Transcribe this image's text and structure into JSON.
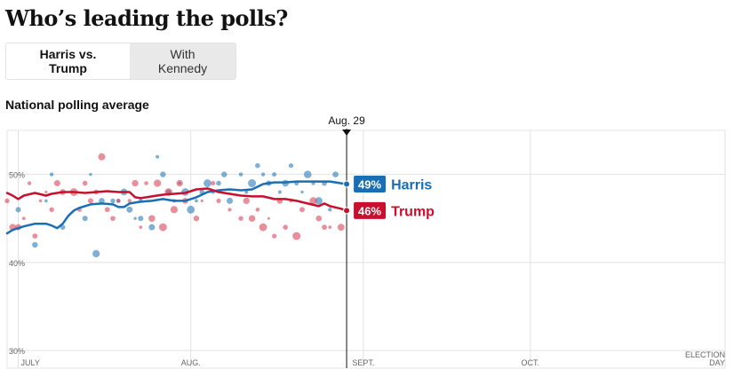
{
  "title": "Who’s leading the polls?",
  "toggle": {
    "option_1": "Harris vs. Trump",
    "option_2": "With Kennedy",
    "selected": "Harris vs. Trump"
  },
  "subtitle": "National polling average",
  "chart_data": {
    "type": "line",
    "x_axis": {
      "start": "2024-06-29",
      "end": "2024-11-05",
      "ticks": [
        {
          "label": "JULY",
          "day": 2
        },
        {
          "label": "AUG.",
          "day": 33
        },
        {
          "label": "SEPT.",
          "day": 64
        },
        {
          "label": "OCT.",
          "day": 94
        },
        {
          "label": "ELECTION",
          "label2": "DAY",
          "day": 129
        }
      ]
    },
    "y_axis": {
      "min": 28,
      "max": 55,
      "ticks": [
        {
          "value": 30,
          "label": "30%"
        },
        {
          "value": 40,
          "label": "40%"
        },
        {
          "value": 50,
          "label": "50%"
        }
      ]
    },
    "current_marker": {
      "label": "Aug. 29",
      "day": 61
    },
    "series": [
      {
        "name": "Harris",
        "color": "#2a79b8",
        "line_color": "#1a6fb4",
        "final_label": "49%",
        "final_value": 48.9,
        "points": [
          [
            0,
            43.3
          ],
          [
            1,
            43.7
          ],
          [
            3,
            44.1
          ],
          [
            5,
            44.4
          ],
          [
            7,
            44.4
          ],
          [
            8,
            44.2
          ],
          [
            9,
            43.9
          ],
          [
            10,
            44.4
          ],
          [
            11,
            45.3
          ],
          [
            12,
            45.9
          ],
          [
            13,
            46.2
          ],
          [
            15,
            46.6
          ],
          [
            17,
            46.7
          ],
          [
            19,
            46.6
          ],
          [
            20,
            46.3
          ],
          [
            21,
            46.3
          ],
          [
            22,
            46.7
          ],
          [
            24,
            46.9
          ],
          [
            26,
            47.0
          ],
          [
            28,
            47.2
          ],
          [
            30,
            47.0
          ],
          [
            32,
            47.0
          ],
          [
            34,
            47.4
          ],
          [
            36,
            48.0
          ],
          [
            38,
            48.2
          ],
          [
            40,
            48.3
          ],
          [
            42,
            48.2
          ],
          [
            44,
            48.3
          ],
          [
            46,
            48.9
          ],
          [
            48,
            49.1
          ],
          [
            50,
            49.1
          ],
          [
            52,
            49.2
          ],
          [
            54,
            49.2
          ],
          [
            56,
            49.2
          ],
          [
            58,
            49.2
          ],
          [
            60,
            49.0
          ],
          [
            61,
            48.9
          ]
        ]
      },
      {
        "name": "Trump",
        "color": "#d8445a",
        "line_color": "#c8102e",
        "final_label": "46%",
        "final_value": 45.9,
        "points": [
          [
            0,
            47.9
          ],
          [
            1,
            47.6
          ],
          [
            2,
            47.2
          ],
          [
            3,
            47.6
          ],
          [
            5,
            47.9
          ],
          [
            7,
            47.6
          ],
          [
            8,
            47.8
          ],
          [
            10,
            48.0
          ],
          [
            12,
            48.0
          ],
          [
            14,
            47.9
          ],
          [
            16,
            48.0
          ],
          [
            18,
            48.1
          ],
          [
            20,
            48.0
          ],
          [
            22,
            48.0
          ],
          [
            23,
            47.4
          ],
          [
            24,
            47.3
          ],
          [
            26,
            47.5
          ],
          [
            28,
            47.7
          ],
          [
            30,
            47.8
          ],
          [
            32,
            47.9
          ],
          [
            34,
            48.3
          ],
          [
            36,
            48.4
          ],
          [
            38,
            48.0
          ],
          [
            40,
            47.8
          ],
          [
            42,
            47.6
          ],
          [
            44,
            47.5
          ],
          [
            46,
            47.5
          ],
          [
            48,
            47.2
          ],
          [
            50,
            47.2
          ],
          [
            52,
            47.0
          ],
          [
            54,
            46.7
          ],
          [
            56,
            46.4
          ],
          [
            57,
            46.7
          ],
          [
            58,
            46.4
          ],
          [
            60,
            46.1
          ],
          [
            61,
            45.9
          ]
        ]
      }
    ],
    "polls": {
      "Harris": [
        [
          2,
          46
        ],
        [
          5,
          42
        ],
        [
          7,
          47
        ],
        [
          8,
          50
        ],
        [
          10,
          44
        ],
        [
          14,
          45
        ],
        [
          15,
          50
        ],
        [
          16,
          41
        ],
        [
          17,
          47
        ],
        [
          19,
          47
        ],
        [
          20,
          47
        ],
        [
          21,
          48
        ],
        [
          22,
          46
        ],
        [
          23,
          45
        ],
        [
          24,
          45
        ],
        [
          24,
          47
        ],
        [
          26,
          44
        ],
        [
          27,
          52
        ],
        [
          28,
          50
        ],
        [
          29,
          48
        ],
        [
          30,
          47
        ],
        [
          31,
          49
        ],
        [
          32,
          48
        ],
        [
          33,
          46
        ],
        [
          34,
          47
        ],
        [
          35,
          48
        ],
        [
          36,
          49
        ],
        [
          37,
          48
        ],
        [
          38,
          49
        ],
        [
          39,
          50
        ],
        [
          40,
          47
        ],
        [
          42,
          50
        ],
        [
          43,
          48
        ],
        [
          44,
          49
        ],
        [
          45,
          51
        ],
        [
          46,
          50
        ],
        [
          47,
          49
        ],
        [
          48,
          50
        ],
        [
          49,
          48
        ],
        [
          50,
          49
        ],
        [
          51,
          51
        ],
        [
          52,
          49
        ],
        [
          53,
          48
        ],
        [
          54,
          50
        ],
        [
          55,
          49
        ],
        [
          56,
          47
        ],
        [
          57,
          49
        ],
        [
          58,
          46
        ],
        [
          59,
          50
        ]
      ],
      "Trump": [
        [
          0,
          47
        ],
        [
          1,
          44
        ],
        [
          2,
          44
        ],
        [
          3,
          45
        ],
        [
          4,
          49
        ],
        [
          5,
          43
        ],
        [
          6,
          47
        ],
        [
          7,
          48
        ],
        [
          8,
          46
        ],
        [
          9,
          49
        ],
        [
          10,
          48
        ],
        [
          12,
          48
        ],
        [
          13,
          46
        ],
        [
          14,
          49
        ],
        [
          15,
          47
        ],
        [
          16,
          48
        ],
        [
          17,
          52
        ],
        [
          18,
          46
        ],
        [
          19,
          45
        ],
        [
          20,
          47
        ],
        [
          22,
          47
        ],
        [
          23,
          49
        ],
        [
          24,
          44
        ],
        [
          25,
          49
        ],
        [
          26,
          45
        ],
        [
          27,
          49
        ],
        [
          28,
          44
        ],
        [
          29,
          48
        ],
        [
          30,
          46
        ],
        [
          31,
          49
        ],
        [
          32,
          47
        ],
        [
          34,
          45
        ],
        [
          35,
          47
        ],
        [
          37,
          49
        ],
        [
          38,
          47
        ],
        [
          40,
          46
        ],
        [
          42,
          45
        ],
        [
          43,
          47
        ],
        [
          44,
          45
        ],
        [
          45,
          46
        ],
        [
          46,
          44
        ],
        [
          47,
          45
        ],
        [
          48,
          43
        ],
        [
          49,
          47
        ],
        [
          50,
          44
        ],
        [
          51,
          47
        ],
        [
          52,
          43
        ],
        [
          53,
          46
        ],
        [
          55,
          47
        ],
        [
          56,
          45
        ],
        [
          57,
          44
        ],
        [
          58,
          44
        ],
        [
          60,
          44
        ]
      ]
    }
  }
}
